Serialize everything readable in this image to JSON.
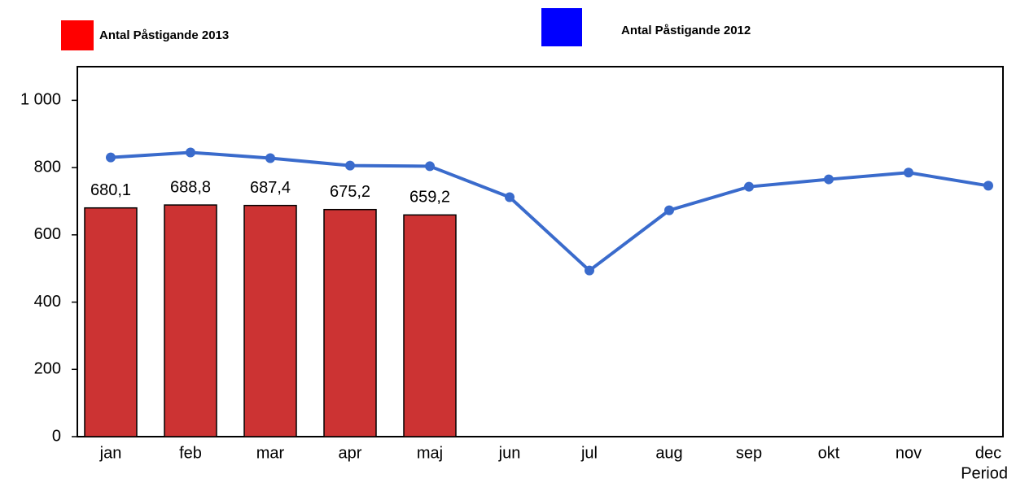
{
  "chart_data": {
    "type": "bar-line",
    "x_label": "Period",
    "categories": [
      "jan",
      "feb",
      "mar",
      "apr",
      "maj",
      "jun",
      "jul",
      "aug",
      "sep",
      "okt",
      "nov",
      "dec"
    ],
    "series": [
      {
        "name": "Antal Påstigande 2013",
        "type": "bar",
        "color": "#cc3333",
        "legend_color": "#ff0000",
        "values": [
          680.1,
          688.8,
          687.4,
          675.2,
          659.2,
          null,
          null,
          null,
          null,
          null,
          null,
          null
        ],
        "value_labels": [
          "680,1",
          "688,8",
          "687,4",
          "675,2",
          "659,2",
          null,
          null,
          null,
          null,
          null,
          null,
          null
        ]
      },
      {
        "name": "Antal Påstigande 2012",
        "type": "line",
        "color": "#3a6bcc",
        "legend_color": "#0000ff",
        "values": [
          830,
          845,
          828,
          806,
          804,
          712,
          494,
          673,
          743,
          765,
          785,
          746
        ]
      }
    ],
    "ylim": [
      0,
      1100
    ],
    "yticks": [
      0,
      200,
      400,
      600,
      800,
      {
        "value": 1000,
        "label": "1 000"
      }
    ]
  }
}
